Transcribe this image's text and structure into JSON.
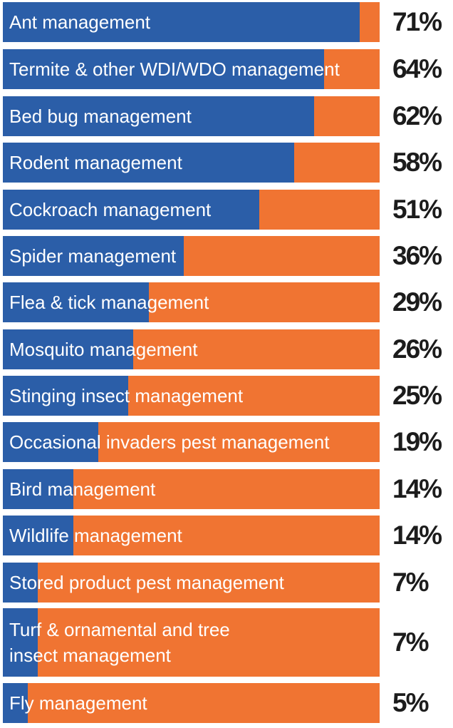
{
  "chart_data": {
    "type": "bar",
    "orientation": "horizontal",
    "stacked": true,
    "title": "",
    "xlabel": "",
    "ylabel": "",
    "xlim": [
      0,
      75
    ],
    "categories": [
      "Ant management",
      "Termite & other WDI/WDO management",
      "Bed bug management",
      "Rodent management",
      "Cockroach management",
      "Spider management",
      "Flea & tick management",
      "Mosquito management",
      "Stinging insect management",
      "Occasional invaders pest management",
      "Bird management",
      "Wildlife management",
      "Stored product pest management",
      "Turf & ornamental and tree\ninsect management",
      "Fly management"
    ],
    "values": [
      71,
      64,
      62,
      58,
      51,
      36,
      29,
      26,
      25,
      19,
      14,
      14,
      7,
      7,
      5
    ],
    "value_labels": [
      "71%",
      "64%",
      "62%",
      "58%",
      "51%",
      "36%",
      "29%",
      "26%",
      "25%",
      "19%",
      "14%",
      "14%",
      "7%",
      "7%",
      "5%"
    ],
    "grid": false,
    "legend": "none",
    "colors": {
      "fill": "#2b5ea8",
      "remainder": "#f07432",
      "label_text": "#ffffff",
      "value_text": "#1c1c1c"
    }
  }
}
